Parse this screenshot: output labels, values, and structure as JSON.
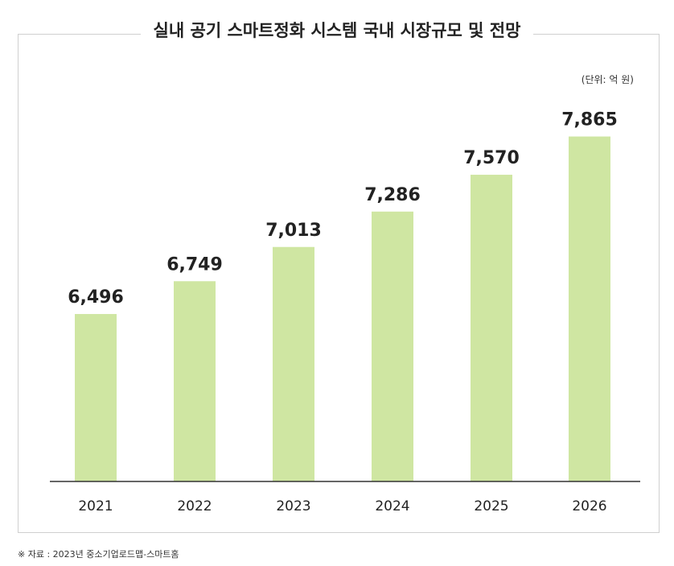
{
  "chart_data": {
    "type": "bar",
    "title": "실내 공기 스마트정화 시스템 국내 시장규모 및 전망",
    "unit": "(단위: 억 원)",
    "categories": [
      "2021",
      "2022",
      "2023",
      "2024",
      "2025",
      "2026"
    ],
    "values": [
      6496,
      6749,
      7013,
      7286,
      7570,
      7865
    ],
    "value_labels": [
      "6,496",
      "6,749",
      "7,013",
      "7,286",
      "7,570",
      "7,865"
    ],
    "bar_color": "#cfe6a2",
    "grid": false,
    "legend": "none"
  },
  "source": "※ 자료 : 2023년 중소기업로드맵-스마트홈"
}
